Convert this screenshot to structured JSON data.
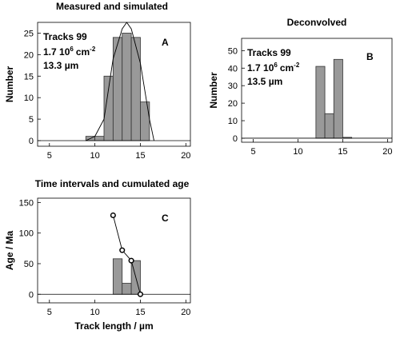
{
  "chart_data": [
    {
      "type": "histogram",
      "title": "Measured and simulated",
      "ylabel": "Number",
      "bins": [
        9,
        10,
        11,
        12,
        13,
        14,
        15,
        16
      ],
      "values": [
        1,
        1,
        15,
        24,
        25,
        24,
        9
      ],
      "color": "#999999",
      "line": {
        "x": [
          9,
          10,
          11,
          12,
          13,
          13.5,
          14,
          15,
          16,
          16.5
        ],
        "y": [
          0,
          1,
          5,
          19,
          26,
          27.5,
          26,
          18,
          5,
          0
        ],
        "color": "#000000",
        "markers": false
      },
      "xlim": [
        3.7,
        20.5
      ],
      "xticks": [
        5,
        10,
        15,
        20
      ],
      "ylim": [
        -1.3,
        27.5
      ],
      "yticks": [
        0,
        5,
        10,
        15,
        20,
        25
      ],
      "annotations": {
        "tracks": "Tracks 99",
        "density": "1.7 10",
        "density_exp": "6",
        "density_unit": "cm",
        "density_unit_exp": "-2",
        "length": "13.3 µm",
        "label": "A"
      }
    },
    {
      "type": "histogram",
      "title": "Deconvolved",
      "ylabel": "Number",
      "bins": [
        12,
        13,
        14,
        15,
        16
      ],
      "values": [
        41,
        14,
        45,
        0.5
      ],
      "color": "#999999",
      "xlim": [
        3.7,
        20.5
      ],
      "xticks": [
        5,
        10,
        15,
        20
      ],
      "ylim": [
        -2.3,
        57
      ],
      "yticks": [
        0,
        10,
        20,
        30,
        40,
        50
      ],
      "annotations": {
        "tracks": "Tracks 99",
        "density": "1.7 10",
        "density_exp": "6",
        "density_unit": "cm",
        "density_unit_exp": "-2",
        "length": "13.5 µm",
        "label": "B"
      }
    },
    {
      "type": "histogram",
      "title": "Time intervals and cumulated age",
      "ylabel": "Age / Ma",
      "xlabel": "Track length /  µm",
      "bins": [
        12,
        13,
        14,
        15
      ],
      "values": [
        58,
        18,
        55
      ],
      "color": "#999999",
      "line": {
        "x": [
          12,
          13,
          14,
          15
        ],
        "y": [
          129,
          72,
          55,
          0
        ],
        "color": "#000000",
        "markers": true
      },
      "xlim": [
        3.7,
        20.5
      ],
      "xticks": [
        5,
        10,
        15,
        20
      ],
      "ylim": [
        -14,
        157
      ],
      "yticks": [
        0,
        50,
        100,
        150
      ],
      "annotations": {
        "label": "C"
      }
    }
  ]
}
